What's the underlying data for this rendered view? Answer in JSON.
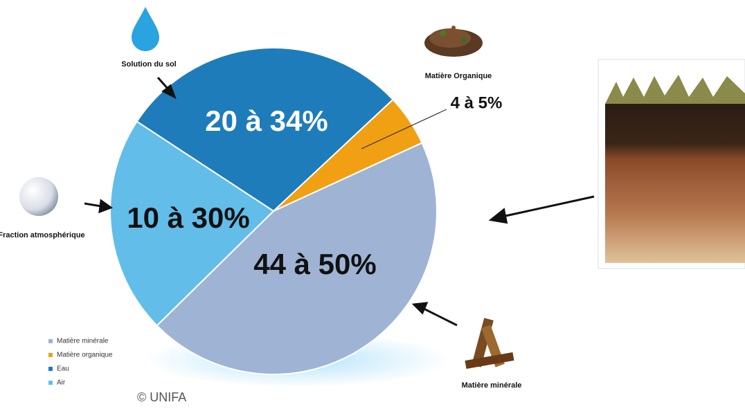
{
  "chart_data": {
    "type": "pie",
    "categories": [
      "Matière minérale",
      "Matière organique",
      "Eau",
      "Air"
    ],
    "values": [
      44.5,
      5.1,
      28.8,
      21.6
    ],
    "value_labels": [
      "44 à 50%",
      "4 à 5%",
      "20 à 34%",
      "10 à 30%"
    ],
    "colors": [
      "#9fb4d4",
      "#f0a012",
      "#1f7cba",
      "#62bde9"
    ],
    "callouts": [
      "Matière minérale",
      "Matière Organique",
      "Solution du sol",
      "Fraction atmosphérique"
    ],
    "credit": "© UNIFA"
  }
}
